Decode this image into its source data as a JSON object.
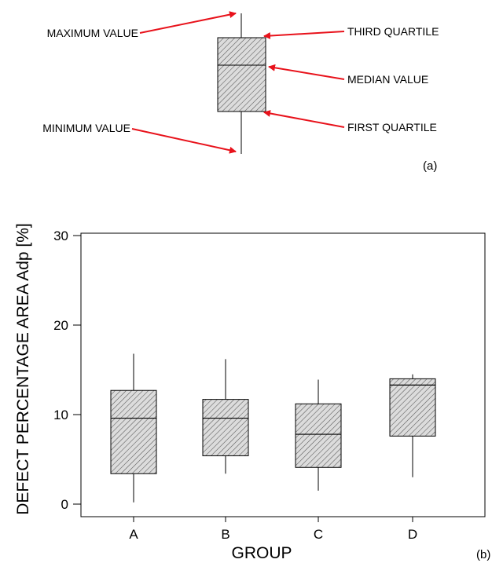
{
  "legend": {
    "labels": {
      "max": "MAXIMUM VALUE",
      "min": "MINIMUM VALUE",
      "q3": "THIRD QUARTILE",
      "median": "MEDIAN VALUE",
      "q1": "FIRST QUARTILE"
    },
    "panel_label": "(a)",
    "arrow_color": "#e8121b"
  },
  "chart_data": {
    "type": "box",
    "panel_label": "(b)",
    "xlabel": "GROUP",
    "ylabel": "DEFECT PERCENTAGE AREA Adp [%]",
    "ylim": [
      0,
      30
    ],
    "yticks": [
      0,
      10,
      20,
      30
    ],
    "categories": [
      "A",
      "B",
      "C",
      "D"
    ],
    "boxes": [
      {
        "category": "A",
        "min": 0.2,
        "q1": 3.4,
        "median": 9.6,
        "q3": 12.7,
        "max": 16.8
      },
      {
        "category": "B",
        "min": 3.4,
        "q1": 5.4,
        "median": 9.6,
        "q3": 11.7,
        "max": 16.2
      },
      {
        "category": "C",
        "min": 1.5,
        "q1": 4.1,
        "median": 7.8,
        "q3": 11.2,
        "max": 13.9
      },
      {
        "category": "D",
        "min": 3.0,
        "q1": 7.6,
        "median": 13.3,
        "q3": 14.0,
        "max": 14.5
      }
    ],
    "grid": false,
    "box_fill": "hatched"
  }
}
